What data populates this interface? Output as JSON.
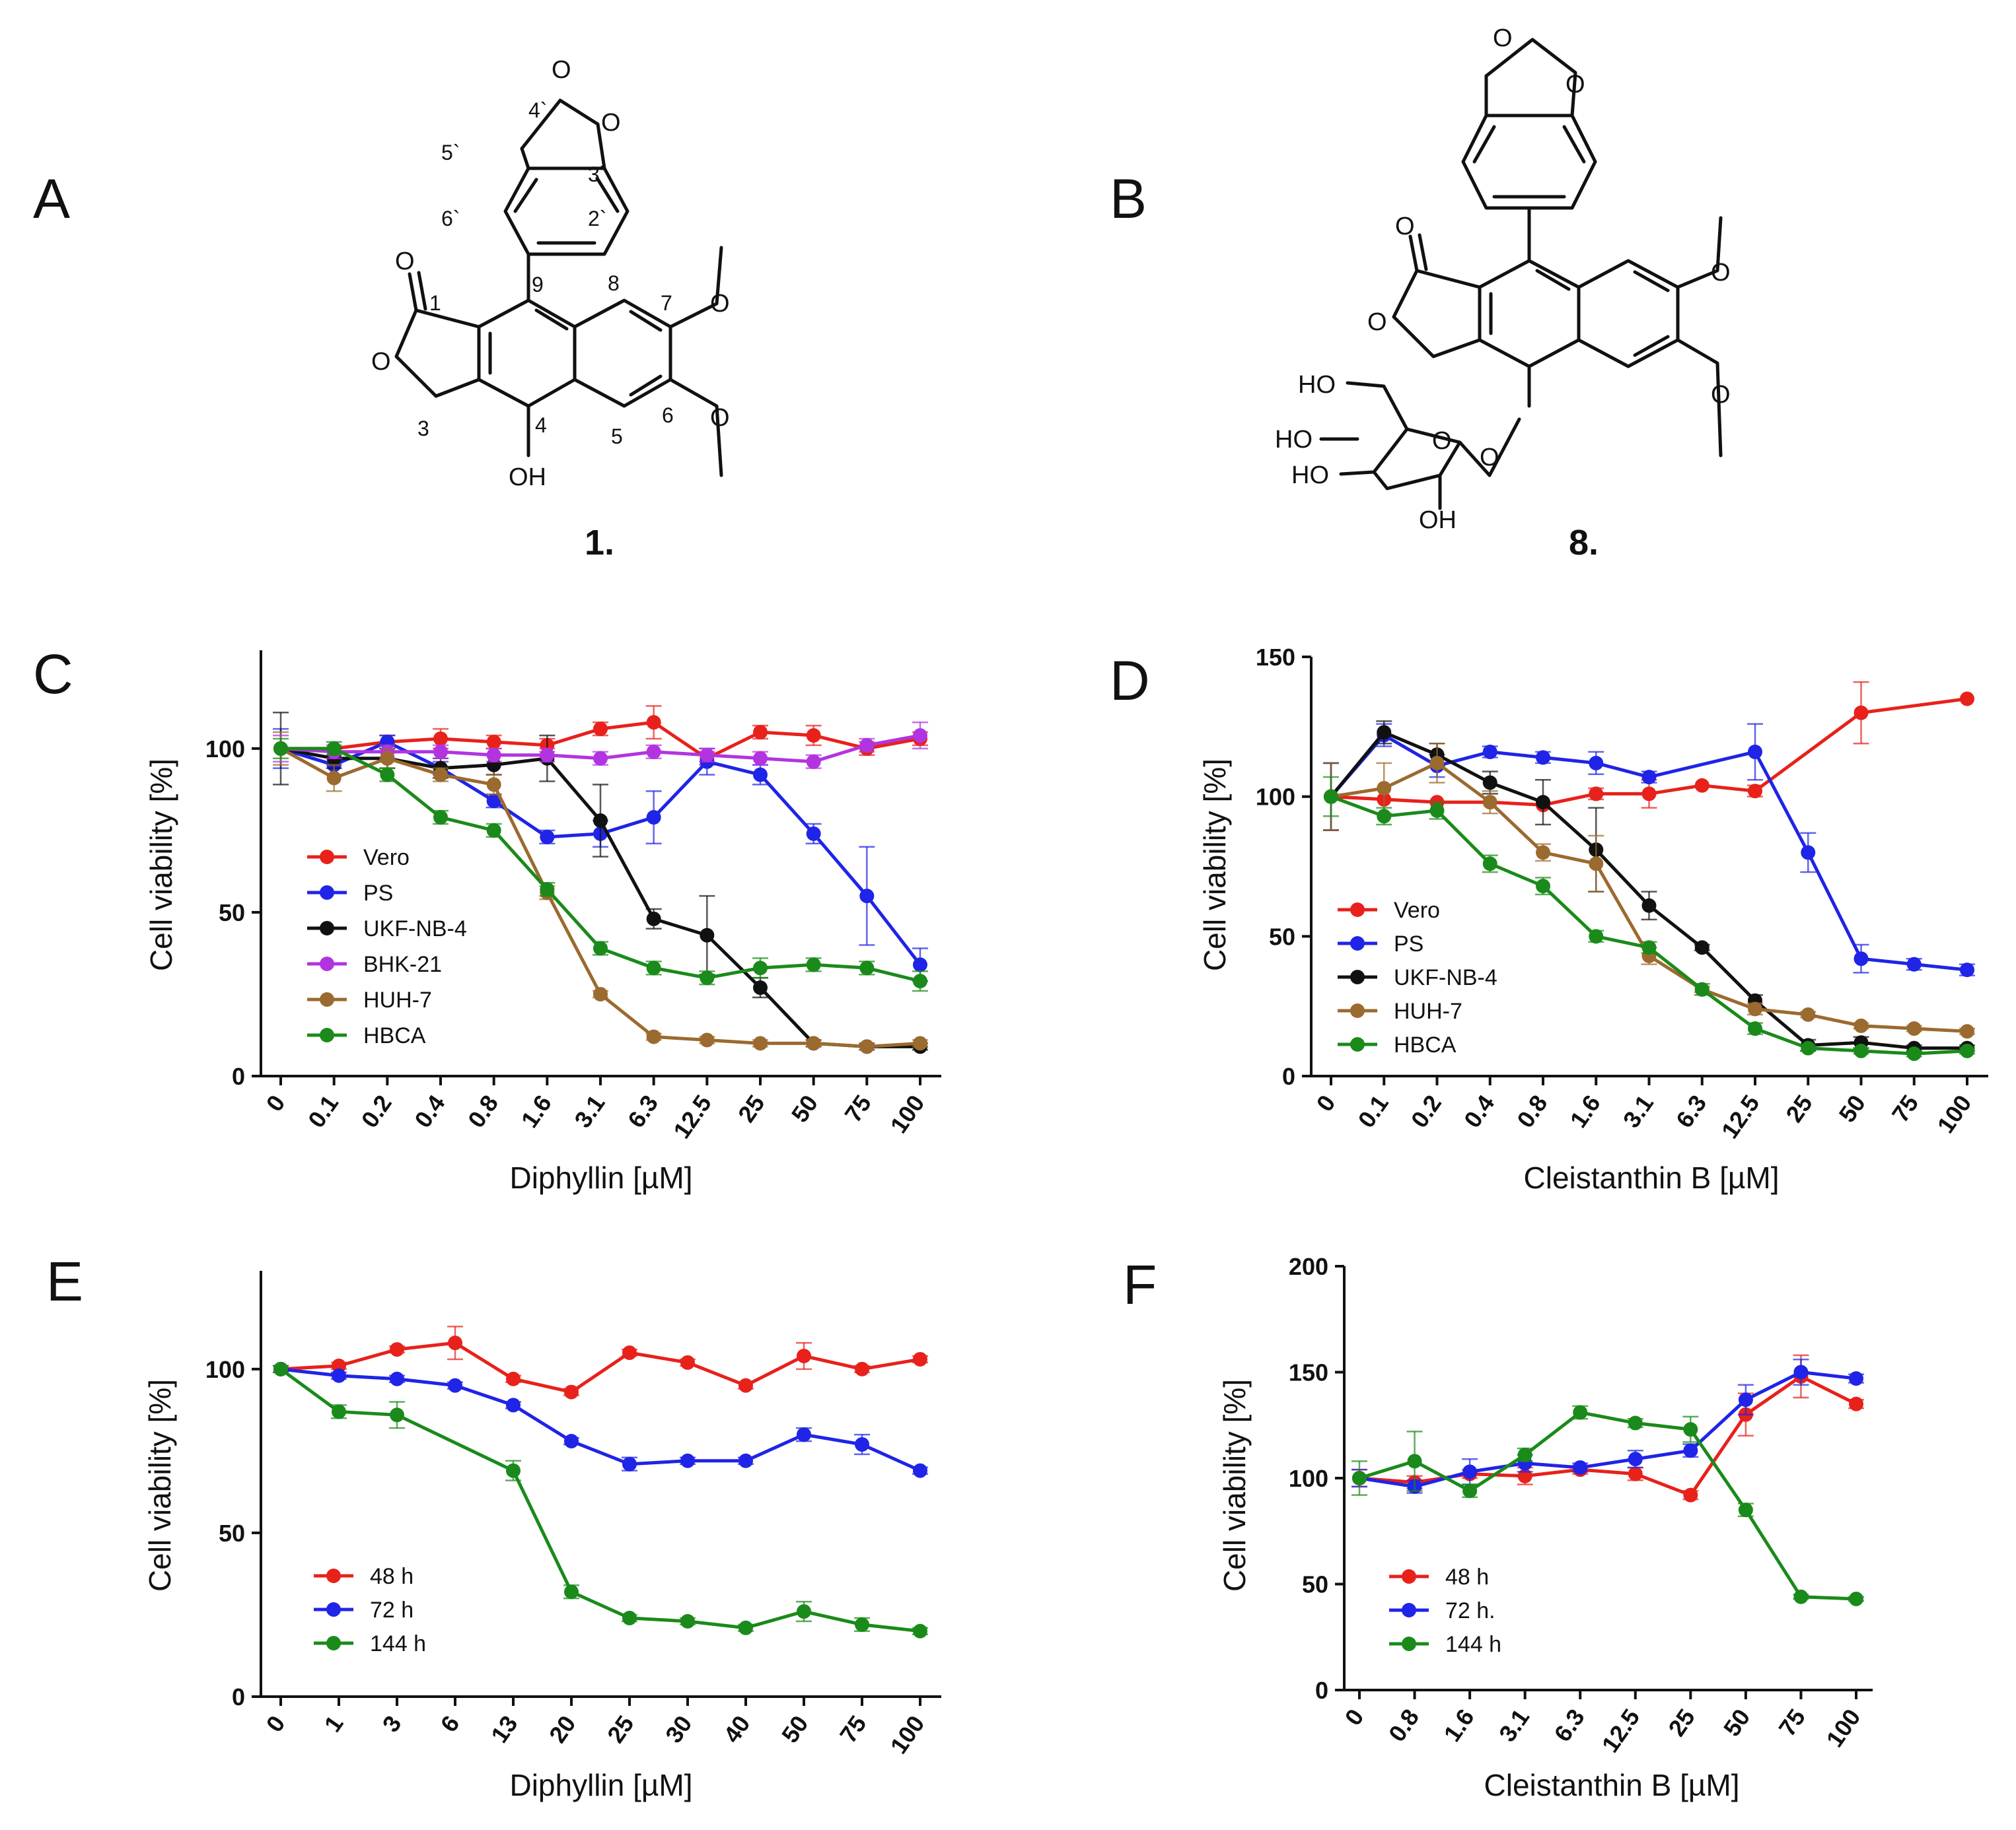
{
  "panels": {
    "A": {
      "label": "A",
      "compound": "1.",
      "atoms": {
        "o_top": "O",
        "o_right": "O",
        "o_carbonyl": "O",
        "o_ring": "O",
        "oh": "OH",
        "ome_top": "O",
        "ome_bot": "O"
      },
      "numbering": [
        "4`",
        "5`",
        "3`",
        "6`",
        "2`",
        "1",
        "9",
        "8",
        "7",
        "3",
        "4",
        "5",
        "6"
      ]
    },
    "B": {
      "label": "B",
      "compound": "8.",
      "atoms": {
        "o_top": "O",
        "o_right": "O",
        "o_carbonyl": "O",
        "o_ring": "O",
        "ome_top": "O",
        "ome_bot": "O",
        "o_glyc": "O",
        "o_sugar": "O",
        "ho1": "HO",
        "ho2": "HO",
        "ho3": "HO",
        "oh": "OH"
      }
    },
    "C": {
      "label": "C"
    },
    "D": {
      "label": "D"
    },
    "E": {
      "label": "E"
    },
    "F": {
      "label": "F"
    }
  },
  "colors": {
    "red": "#e8211b",
    "blue": "#1f24e6",
    "black": "#111111",
    "purple": "#b234e0",
    "brown": "#9b6a2f",
    "green": "#1a8a1a"
  },
  "chart_data": [
    {
      "id": "C",
      "type": "line",
      "title": "",
      "xlabel": "Diphyllin [µM]",
      "ylabel": "Cell viability [%]",
      "categories": [
        "0",
        "0.1",
        "0.2",
        "0.4",
        "0.8",
        "1.6",
        "3.1",
        "6.3",
        "12.5",
        "25",
        "50",
        "75",
        "100"
      ],
      "ylim": [
        0,
        130
      ],
      "yticks": [
        0,
        50,
        100
      ],
      "legend": "middle-left",
      "series": [
        {
          "name": "Vero",
          "color": "red",
          "values": [
            100,
            100,
            102,
            103,
            102,
            101,
            106,
            108,
            97,
            105,
            104,
            100,
            103
          ],
          "err": [
            0,
            0,
            2,
            3,
            2,
            2,
            2,
            5,
            2,
            2,
            3,
            2,
            2
          ]
        },
        {
          "name": "PS",
          "color": "blue",
          "values": [
            100,
            95,
            102,
            null,
            null,
            null,
            null,
            null,
            null,
            null,
            null,
            null,
            null
          ],
          "err": [
            0,
            0,
            0,
            0,
            0,
            0,
            0,
            0,
            0,
            0,
            0,
            0,
            0
          ]
        },
        {
          "name": "PS",
          "color": "blue",
          "values": [
            100,
            95,
            102,
            94,
            84,
            73,
            74,
            79,
            96,
            92,
            74,
            55,
            34
          ],
          "err": [
            6,
            3,
            2,
            2,
            2,
            2,
            4,
            8,
            4,
            3,
            3,
            15,
            5
          ]
        },
        {
          "name": "UKF-NB-4",
          "color": "black",
          "values": [
            100,
            97,
            97,
            94,
            95,
            97,
            78,
            48,
            43,
            27,
            10,
            9,
            9
          ],
          "err": [
            11,
            3,
            3,
            3,
            3,
            7,
            11,
            3,
            12,
            3,
            1,
            1,
            1
          ]
        },
        {
          "name": "BHK-21",
          "color": "purple",
          "values": [
            100,
            99,
            99,
            99,
            98,
            98,
            97,
            99,
            98,
            97,
            96,
            101,
            104
          ],
          "err": [
            4,
            2,
            2,
            2,
            2,
            2,
            2,
            2,
            2,
            2,
            2,
            2,
            4
          ]
        },
        {
          "name": "HUH-7",
          "color": "brown",
          "values": [
            100,
            91,
            97,
            92,
            89,
            56,
            25,
            12,
            11,
            10,
            10,
            9,
            10
          ],
          "err": [
            5,
            4,
            3,
            2,
            3,
            2,
            1,
            1,
            1,
            1,
            1,
            1,
            1
          ]
        },
        {
          "name": "HBCA",
          "color": "green",
          "values": [
            100,
            100,
            92,
            79,
            75,
            57,
            39,
            33,
            30,
            33,
            34,
            33,
            29
          ],
          "err": [
            3,
            2,
            2,
            2,
            2,
            2,
            2,
            2,
            2,
            3,
            2,
            2,
            3
          ]
        }
      ]
    },
    {
      "id": "D",
      "type": "line",
      "title": "",
      "xlabel": "Cleistanthin B [µM]",
      "ylabel": "Cell viability [%]",
      "categories": [
        "0",
        "0.1",
        "0.2",
        "0.4",
        "0.8",
        "1.6",
        "3.1",
        "6.3",
        "12.5",
        "25",
        "50",
        "75",
        "100"
      ],
      "ylim": [
        0,
        150
      ],
      "yticks": [
        0,
        50,
        100,
        150
      ],
      "legend": "middle-left",
      "series": [
        {
          "name": "Vero",
          "color": "red",
          "values": [
            100,
            99,
            98,
            98,
            97,
            101,
            101,
            104,
            102,
            null,
            130,
            null,
            135
          ],
          "err": [
            0,
            0,
            0,
            0,
            0,
            2,
            5,
            0,
            2,
            0,
            11,
            0,
            0
          ]
        },
        {
          "name": "PS",
          "color": "blue",
          "values": [
            100,
            122,
            111,
            116,
            114,
            112,
            107,
            null,
            116,
            80,
            42,
            40,
            38
          ],
          "err": [
            12,
            4,
            4,
            2,
            2,
            4,
            2,
            0,
            10,
            7,
            5,
            2,
            2
          ]
        },
        {
          "name": "UKF-NB-4",
          "color": "black",
          "values": [
            100,
            123,
            115,
            105,
            98,
            81,
            61,
            46,
            27,
            11,
            12,
            10,
            10
          ],
          "err": [
            12,
            4,
            4,
            4,
            8,
            15,
            5,
            1,
            2,
            2,
            2,
            1,
            1
          ]
        },
        {
          "name": "HUH-7",
          "color": "brown",
          "values": [
            100,
            103,
            112,
            98,
            80,
            76,
            43,
            31,
            24,
            22,
            18,
            17,
            16
          ],
          "err": [
            12,
            9,
            7,
            4,
            3,
            10,
            3,
            1,
            2,
            1,
            1,
            1,
            1
          ]
        },
        {
          "name": "HBCA",
          "color": "green",
          "values": [
            100,
            93,
            95,
            76,
            68,
            50,
            46,
            31,
            17,
            10,
            9,
            8,
            9
          ],
          "err": [
            7,
            3,
            3,
            3,
            3,
            2,
            2,
            2,
            2,
            1,
            1,
            1,
            1
          ]
        }
      ],
      "legend_names": [
        "Vero",
        "PS",
        "UKF-NB-4",
        "HUH-7",
        "HBCA"
      ]
    },
    {
      "id": "E",
      "type": "line",
      "title": "",
      "xlabel": "Diphyllin [µM]",
      "ylabel": "Cell viability [%]",
      "categories": [
        "0",
        "1",
        "3",
        "6",
        "13",
        "20",
        "25",
        "30",
        "40",
        "50",
        "75",
        "100"
      ],
      "ylim": [
        0,
        130
      ],
      "yticks": [
        0,
        50,
        100
      ],
      "legend": "lower-left",
      "series": [
        {
          "name": "48 h",
          "color": "red",
          "values": [
            100,
            101,
            106,
            108,
            97,
            93,
            105,
            102,
            95,
            104,
            100,
            103
          ],
          "err": [
            1,
            1,
            1,
            5,
            1,
            1,
            1,
            1,
            1,
            4,
            1,
            1
          ]
        },
        {
          "name": "72 h",
          "color": "blue",
          "values": [
            100,
            98,
            97,
            95,
            89,
            78,
            71,
            72,
            72,
            80,
            77,
            69
          ],
          "err": [
            1,
            1,
            1,
            1,
            1,
            1,
            2,
            1,
            1,
            2,
            3,
            1
          ]
        },
        {
          "name": "144 h",
          "color": "green",
          "values": [
            100,
            87,
            86,
            null,
            69,
            32,
            24,
            23,
            21,
            26,
            22,
            20
          ],
          "err": [
            1,
            2,
            4,
            0,
            3,
            2,
            1,
            1,
            1,
            3,
            2,
            1
          ]
        }
      ]
    },
    {
      "id": "F",
      "type": "line",
      "title": "",
      "xlabel": "Cleistanthin B [µM]",
      "ylabel": "Cell viability [%]",
      "categories": [
        "0",
        "0.8",
        "1.6",
        "3.1",
        "6.3",
        "12.5",
        "25",
        "50",
        "75",
        "100"
      ],
      "ylim": [
        0,
        200
      ],
      "yticks": [
        0,
        50,
        100,
        150,
        200
      ],
      "legend": "lower-left",
      "series": [
        {
          "name": "48 h",
          "color": "red",
          "values": [
            100,
            98,
            102,
            101,
            104,
            102,
            92,
            130,
            148,
            135
          ],
          "err": [
            4,
            3,
            2,
            4,
            2,
            3,
            2,
            10,
            10,
            2
          ]
        },
        {
          "name": "72 h",
          "color": "blue",
          "values": [
            100,
            96,
            103,
            107,
            105,
            109,
            113,
            137,
            150,
            147
          ],
          "err": [
            4,
            3,
            6,
            4,
            2,
            4,
            3,
            7,
            6,
            2
          ]
        },
        {
          "name": "144 h",
          "color": "green",
          "values": [
            100,
            108,
            94,
            111,
            131,
            126,
            123,
            85,
            44,
            43
          ],
          "err": [
            8,
            14,
            3,
            3,
            3,
            2,
            6,
            3,
            1,
            1
          ]
        }
      ],
      "legend_names": [
        "48 h",
        "72 h.",
        "144 h"
      ]
    }
  ]
}
